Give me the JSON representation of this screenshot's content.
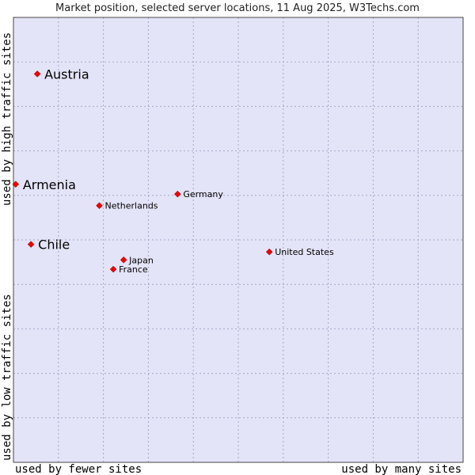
{
  "chart_data": {
    "type": "scatter",
    "title": "Market position, selected server locations, 11 Aug 2025, W3Techs.com",
    "xlabel_left": "used by fewer sites",
    "xlabel_right": "used by many sites",
    "ylabel_bottom": "used by low traffic sites",
    "ylabel_top": "used by high traffic sites",
    "xlim": [
      0,
      100
    ],
    "ylim": [
      0,
      100
    ],
    "grid": true,
    "colors": {
      "plot_bg": "#e4e4f8",
      "grid": "#a6a6c8",
      "border": "#444444",
      "marker": "#ee0000"
    },
    "points": [
      {
        "label": "Austria",
        "x": 5.3,
        "y": 87.3,
        "emphasis": true
      },
      {
        "label": "Armenia",
        "x": 0.5,
        "y": 62.5,
        "emphasis": true
      },
      {
        "label": "Chile",
        "x": 3.9,
        "y": 49.0,
        "emphasis": true
      },
      {
        "label": "Germany",
        "x": 36.5,
        "y": 60.3,
        "emphasis": false
      },
      {
        "label": "Netherlands",
        "x": 19.1,
        "y": 57.7,
        "emphasis": false
      },
      {
        "label": "United States",
        "x": 56.9,
        "y": 47.3,
        "emphasis": false
      },
      {
        "label": "Japan",
        "x": 24.5,
        "y": 45.5,
        "emphasis": false
      },
      {
        "label": "France",
        "x": 22.2,
        "y": 43.4,
        "emphasis": false
      }
    ]
  }
}
